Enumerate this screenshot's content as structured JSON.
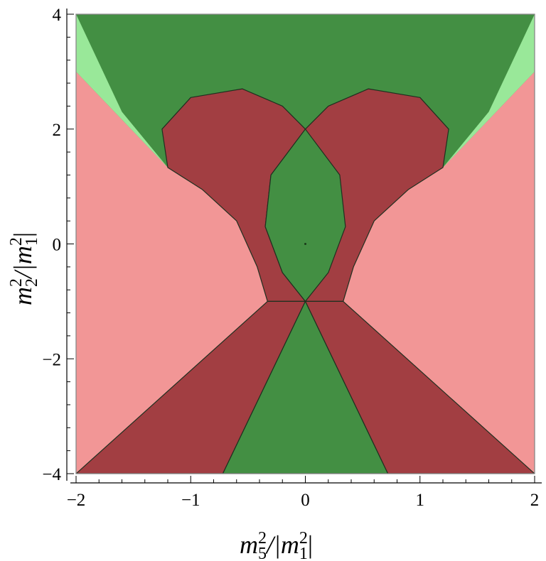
{
  "chart_data": {
    "type": "area",
    "title": "",
    "xlabel": {
      "base": "m",
      "sub": "5",
      "sup": "2",
      "mid": "/|m",
      "sub2": "1",
      "sup2": "2",
      "end": "|"
    },
    "ylabel": {
      "base": "m",
      "sub": "2",
      "sup": "2",
      "mid": "/|m",
      "sub2": "1",
      "sup2": "2",
      "end": "|"
    },
    "xlim": [
      -2,
      2
    ],
    "ylim": [
      -4,
      4
    ],
    "xticks": [
      -2,
      -1,
      0,
      1,
      2
    ],
    "yticks": [
      -4,
      -2,
      0,
      2,
      4
    ],
    "xtick_labels": [
      "−2",
      "−1",
      "0",
      "1",
      "2"
    ],
    "ytick_labels": [
      "−4",
      "−2",
      "0",
      "2",
      "4"
    ],
    "grid": false,
    "colors": {
      "green_dark": "#438f43",
      "green_light": "#99e899",
      "pink": "#f29696",
      "red_dark": "#a23e42",
      "frame": "#888888",
      "boundary": "#1f2f1f"
    },
    "regions": [
      {
        "name": "pink-left",
        "color": "pink",
        "points": [
          [
            -2,
            3.0
          ],
          [
            -1.2,
            1.33
          ],
          [
            -0.9,
            0.95
          ],
          [
            -0.6,
            0.4
          ],
          [
            -0.42,
            -0.4
          ],
          [
            -0.33,
            -1.0
          ],
          [
            -2,
            -4
          ]
        ]
      },
      {
        "name": "pink-right",
        "color": "pink",
        "points": [
          [
            2,
            3.0
          ],
          [
            1.2,
            1.33
          ],
          [
            0.9,
            0.95
          ],
          [
            0.6,
            0.4
          ],
          [
            0.42,
            -0.4
          ],
          [
            0.33,
            -1.0
          ],
          [
            2,
            -4
          ]
        ]
      },
      {
        "name": "light-green-left",
        "color": "green_light",
        "points": [
          [
            -2,
            4
          ],
          [
            -2,
            3.0
          ],
          [
            -1.2,
            1.33
          ],
          [
            -1.6,
            2.3
          ]
        ]
      },
      {
        "name": "light-green-right",
        "color": "green_light",
        "points": [
          [
            2,
            4
          ],
          [
            2,
            3.0
          ],
          [
            1.2,
            1.33
          ],
          [
            1.6,
            2.3
          ]
        ]
      },
      {
        "name": "lobe-left",
        "color": "red_dark",
        "points": [
          [
            -1.2,
            1.33
          ],
          [
            -1.25,
            2.0
          ],
          [
            -1.0,
            2.55
          ],
          [
            -0.55,
            2.7
          ],
          [
            -0.2,
            2.4
          ],
          [
            0,
            2.0
          ],
          [
            0.3,
            1.2
          ],
          [
            0.35,
            0.3
          ],
          [
            0.2,
            -0.5
          ],
          [
            0,
            -1.0
          ],
          [
            -0.33,
            -1.0
          ],
          [
            -0.42,
            -0.4
          ],
          [
            -0.6,
            0.4
          ],
          [
            -0.9,
            0.95
          ]
        ]
      },
      {
        "name": "lobe-right",
        "color": "red_dark",
        "points": [
          [
            1.2,
            1.33
          ],
          [
            1.25,
            2.0
          ],
          [
            1.0,
            2.55
          ],
          [
            0.55,
            2.7
          ],
          [
            0.2,
            2.4
          ],
          [
            0,
            2.0
          ],
          [
            -0.3,
            1.2
          ],
          [
            -0.35,
            0.3
          ],
          [
            -0.2,
            -0.5
          ],
          [
            0,
            -1.0
          ],
          [
            0.33,
            -1.0
          ],
          [
            0.42,
            -0.4
          ],
          [
            0.6,
            0.4
          ],
          [
            0.9,
            0.95
          ]
        ]
      },
      {
        "name": "wedge-left",
        "color": "red_dark",
        "points": [
          [
            -0.33,
            -1.0
          ],
          [
            0,
            -1.0
          ],
          [
            -0.72,
            -4
          ],
          [
            -2,
            -4
          ]
        ]
      },
      {
        "name": "wedge-right",
        "color": "red_dark",
        "points": [
          [
            0.33,
            -1.0
          ],
          [
            0,
            -1.0
          ],
          [
            0.72,
            -4
          ],
          [
            2,
            -4
          ]
        ]
      },
      {
        "name": "center-lens",
        "color": "green_dark",
        "points": [
          [
            0,
            2.0
          ],
          [
            -0.3,
            1.2
          ],
          [
            -0.35,
            0.3
          ],
          [
            -0.2,
            -0.5
          ],
          [
            0,
            -1.0
          ],
          [
            0.2,
            -0.5
          ],
          [
            0.35,
            0.3
          ],
          [
            0.3,
            1.2
          ]
        ]
      },
      {
        "name": "lower-triangle",
        "color": "green_dark",
        "points": [
          [
            0,
            -1.0
          ],
          [
            -0.72,
            -4
          ],
          [
            0.72,
            -4
          ]
        ]
      }
    ]
  }
}
